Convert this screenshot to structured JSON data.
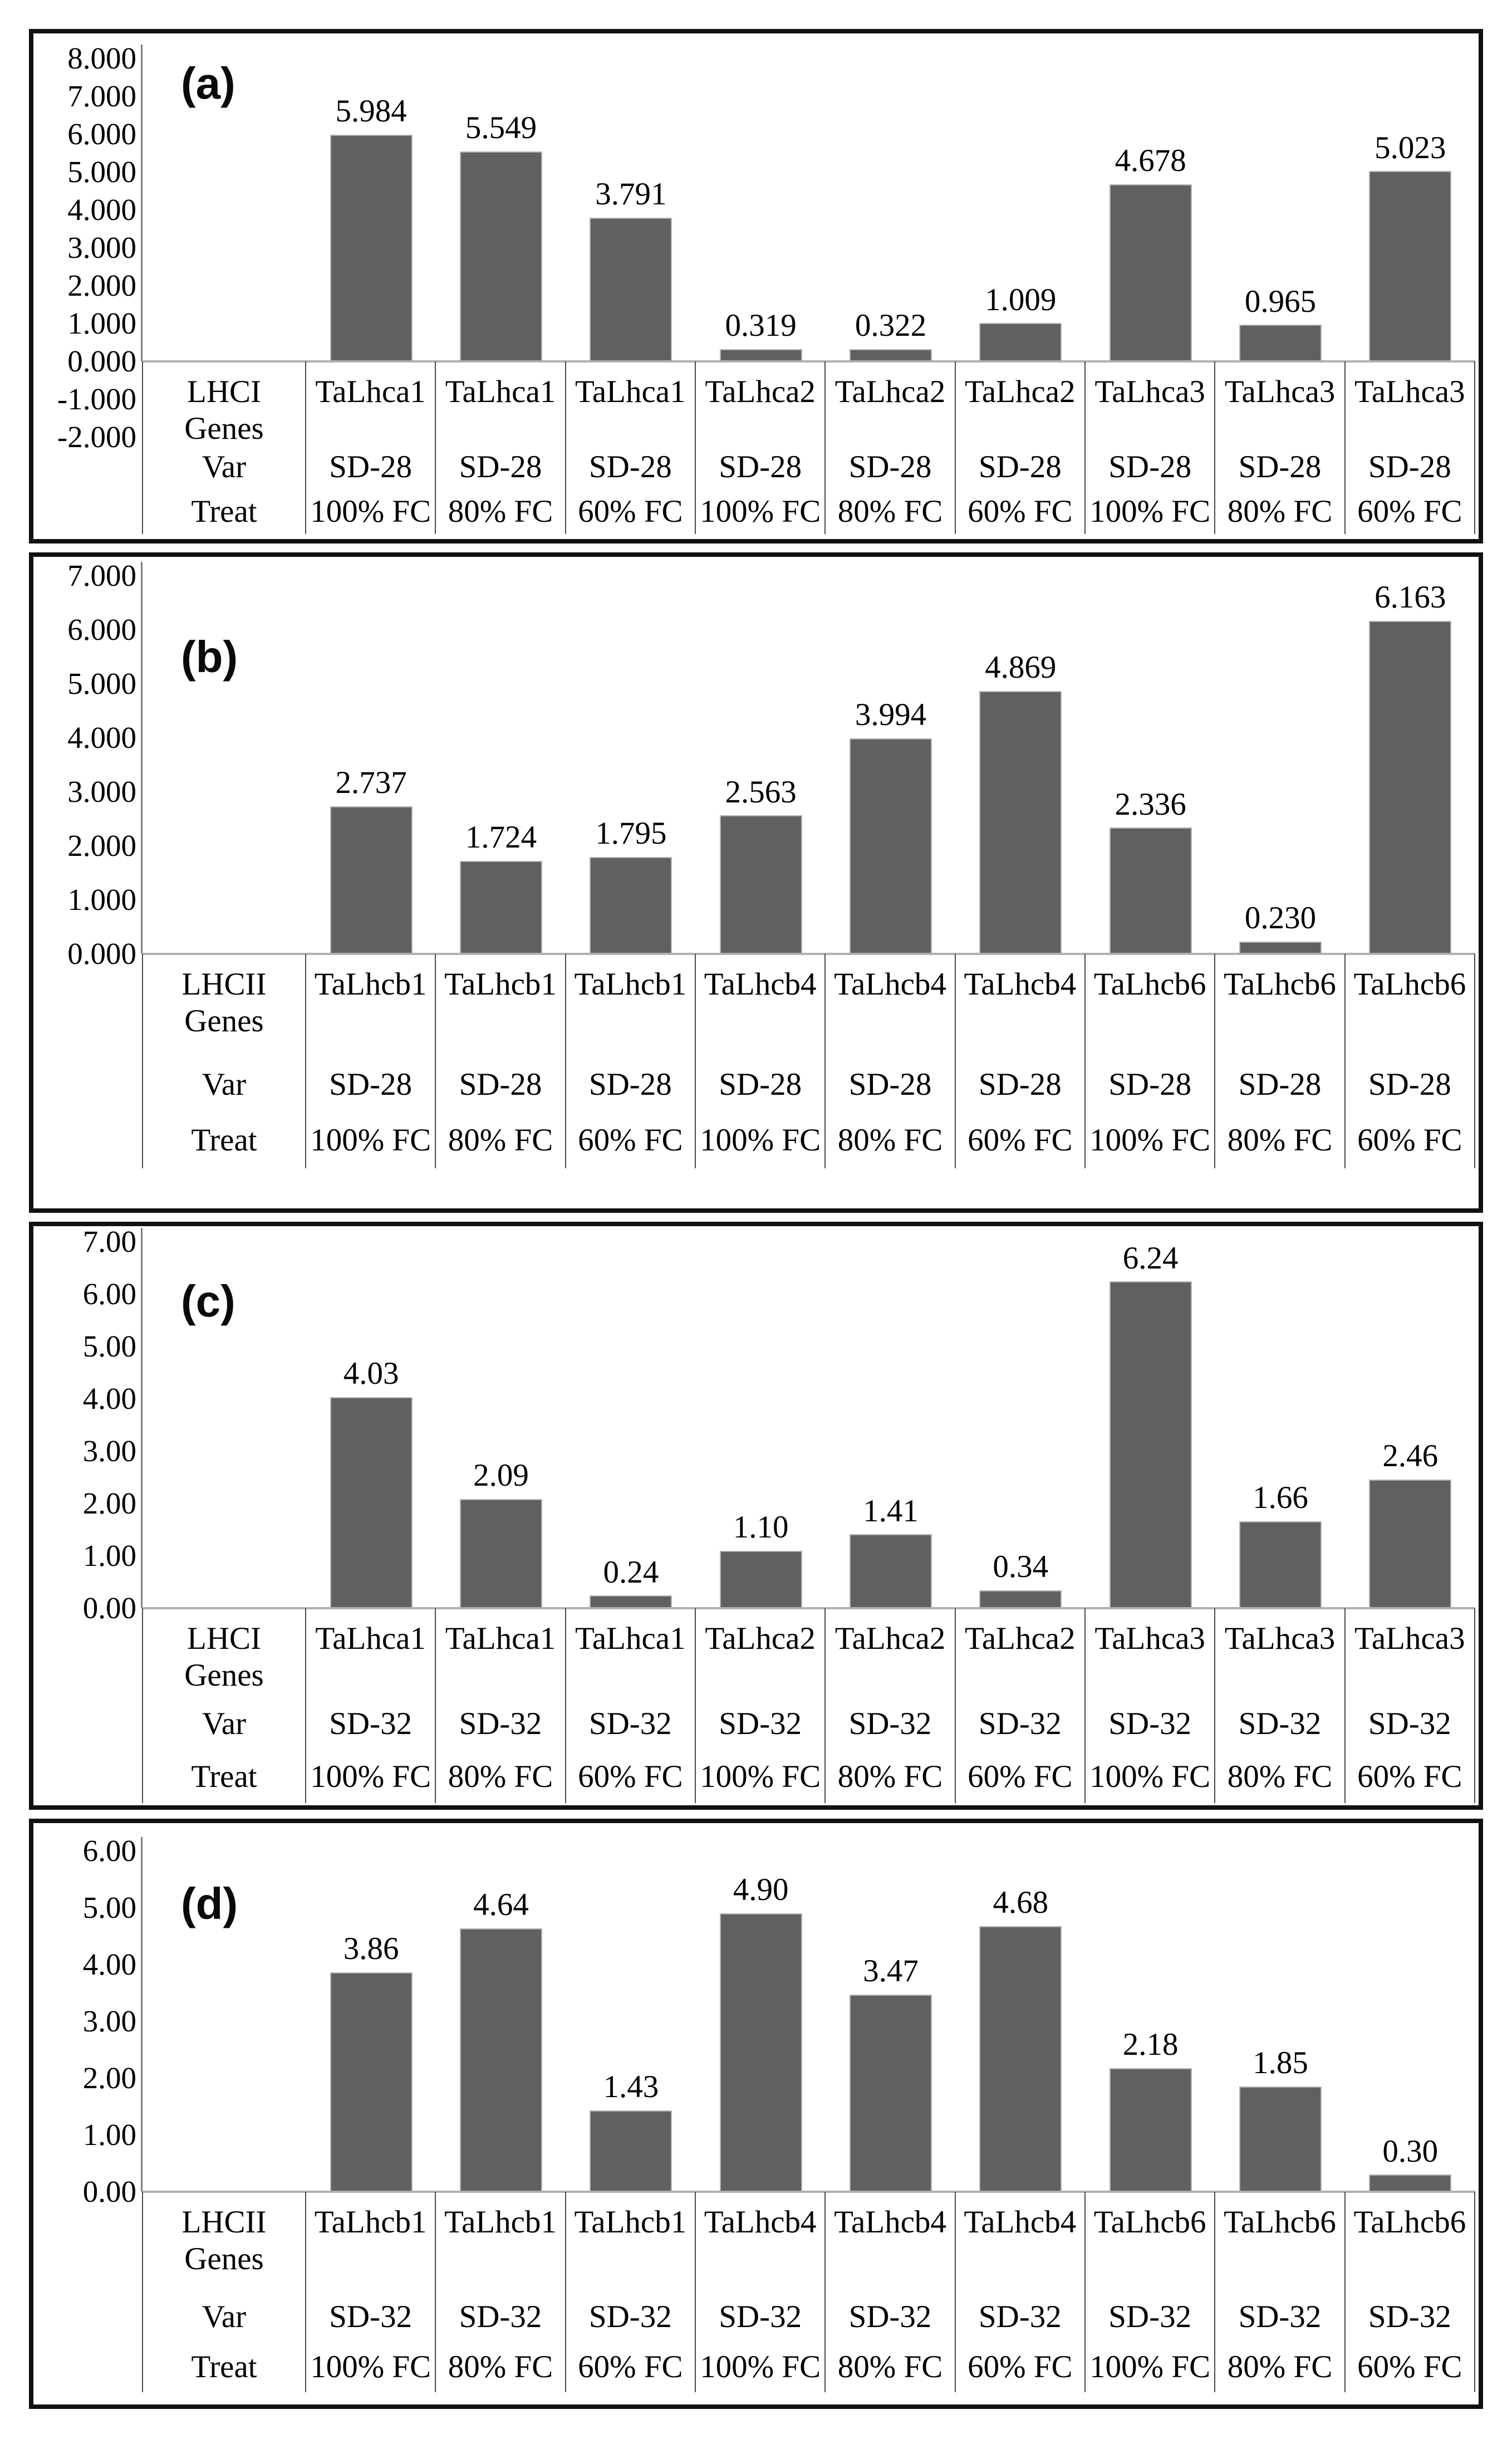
{
  "colors": {
    "bar_fill": "#606060",
    "bar_edge": "#b3b3b3",
    "axis_line": "#7f7f7f",
    "baseline": "#b0b0b0",
    "grid_line": "#4a4a4a",
    "panel_border": "#111111",
    "text": "#000000"
  },
  "chart_data": [
    {
      "type": "bar",
      "panel_label": "(a)",
      "row_headers": {
        "genes": "LHCI Genes",
        "var": "Var",
        "treat": "Treat"
      },
      "genes": [
        "TaLhca1",
        "TaLhca1",
        "TaLhca1",
        "TaLhca2",
        "TaLhca2",
        "TaLhca2",
        "TaLhca3",
        "TaLhca3",
        "TaLhca3"
      ],
      "varieties": [
        "SD-28",
        "SD-28",
        "SD-28",
        "SD-28",
        "SD-28",
        "SD-28",
        "SD-28",
        "SD-28",
        "SD-28"
      ],
      "treatments": [
        "100% FC",
        "80% FC",
        "60% FC",
        "100% FC",
        "80% FC",
        "60% FC",
        "100% FC",
        "80% FC",
        "60% FC"
      ],
      "values": [
        5.984,
        5.549,
        3.791,
        0.319,
        0.322,
        1.009,
        4.678,
        0.965,
        5.023
      ],
      "value_labels": [
        "5.984",
        "5.549",
        "3.791",
        "0.319",
        "0.322",
        "1.009",
        "4.678",
        "0.965",
        "5.023"
      ],
      "ylim": [
        -2,
        8
      ],
      "ytick_step": 1,
      "ytick_labels": [
        "8.000",
        "7.000",
        "6.000",
        "5.000",
        "4.000",
        "3.000",
        "2.000",
        "1.000",
        "0.000",
        "-1.000",
        "-2.000"
      ],
      "xlabel": "",
      "ylabel": "",
      "legend": false,
      "grid": false
    },
    {
      "type": "bar",
      "panel_label": "(b)",
      "row_headers": {
        "genes": "LHCII Genes",
        "var": "Var",
        "treat": "Treat"
      },
      "genes": [
        "TaLhcb1",
        "TaLhcb1",
        "TaLhcb1",
        "TaLhcb4",
        "TaLhcb4",
        "TaLhcb4",
        "TaLhcb6",
        "TaLhcb6",
        "TaLhcb6"
      ],
      "varieties": [
        "SD-28",
        "SD-28",
        "SD-28",
        "SD-28",
        "SD-28",
        "SD-28",
        "SD-28",
        "SD-28",
        "SD-28"
      ],
      "treatments": [
        "100% FC",
        "80% FC",
        "60% FC",
        "100% FC",
        "80% FC",
        "60% FC",
        "100% FC",
        "80% FC",
        "60% FC"
      ],
      "values": [
        2.737,
        1.724,
        1.795,
        2.563,
        3.994,
        4.869,
        2.336,
        0.23,
        6.163
      ],
      "value_labels": [
        "2.737",
        "1.724",
        "1.795",
        "2.563",
        "3.994",
        "4.869",
        "2.336",
        "0.230",
        "6.163"
      ],
      "ylim": [
        0,
        7
      ],
      "ytick_step": 1,
      "ytick_labels": [
        "7.000",
        "6.000",
        "5.000",
        "4.000",
        "3.000",
        "2.000",
        "1.000",
        "0.000"
      ],
      "xlabel": "",
      "ylabel": "",
      "legend": false,
      "grid": false
    },
    {
      "type": "bar",
      "panel_label": "(c)",
      "row_headers": {
        "genes": "LHCI Genes",
        "var": "Var",
        "treat": "Treat"
      },
      "genes": [
        "TaLhca1",
        "TaLhca1",
        "TaLhca1",
        "TaLhca2",
        "TaLhca2",
        "TaLhca2",
        "TaLhca3",
        "TaLhca3",
        "TaLhca3"
      ],
      "varieties": [
        "SD-32",
        "SD-32",
        "SD-32",
        "SD-32",
        "SD-32",
        "SD-32",
        "SD-32",
        "SD-32",
        "SD-32"
      ],
      "treatments": [
        "100% FC",
        "80% FC",
        "60% FC",
        "100% FC",
        "80% FC",
        "60% FC",
        "100% FC",
        "80% FC",
        "60% FC"
      ],
      "values": [
        4.03,
        2.09,
        0.24,
        1.1,
        1.41,
        0.34,
        6.24,
        1.66,
        2.46
      ],
      "value_labels": [
        "4.03",
        "2.09",
        "0.24",
        "1.10",
        "1.41",
        "0.34",
        "6.24",
        "1.66",
        "2.46"
      ],
      "ylim": [
        0,
        7
      ],
      "ytick_step": 1,
      "ytick_labels": [
        "7.00",
        "6.00",
        "5.00",
        "4.00",
        "3.00",
        "2.00",
        "1.00",
        "0.00"
      ],
      "xlabel": "",
      "ylabel": "",
      "legend": false,
      "grid": false
    },
    {
      "type": "bar",
      "panel_label": "(d)",
      "row_headers": {
        "genes": "LHCII Genes",
        "var": "Var",
        "treat": "Treat"
      },
      "genes": [
        "TaLhcb1",
        "TaLhcb1",
        "TaLhcb1",
        "TaLhcb4",
        "TaLhcb4",
        "TaLhcb4",
        "TaLhcb6",
        "TaLhcb6",
        "TaLhcb6"
      ],
      "varieties": [
        "SD-32",
        "SD-32",
        "SD-32",
        "SD-32",
        "SD-32",
        "SD-32",
        "SD-32",
        "SD-32",
        "SD-32"
      ],
      "treatments": [
        "100% FC",
        "80% FC",
        "60% FC",
        "100% FC",
        "80% FC",
        "60% FC",
        "100% FC",
        "80% FC",
        "60% FC"
      ],
      "values": [
        3.86,
        4.64,
        1.43,
        4.9,
        3.47,
        4.68,
        2.18,
        1.85,
        0.3
      ],
      "value_labels": [
        "3.86",
        "4.64",
        "1.43",
        "4.90",
        "3.47",
        "4.68",
        "2.18",
        "1.85",
        "0.30"
      ],
      "ylim": [
        0,
        6
      ],
      "ytick_step": 1,
      "ytick_labels": [
        "6.00",
        "5.00",
        "4.00",
        "3.00",
        "2.00",
        "1.00",
        "0.00"
      ],
      "xlabel": "",
      "ylabel": "",
      "legend": false,
      "grid": false
    }
  ]
}
